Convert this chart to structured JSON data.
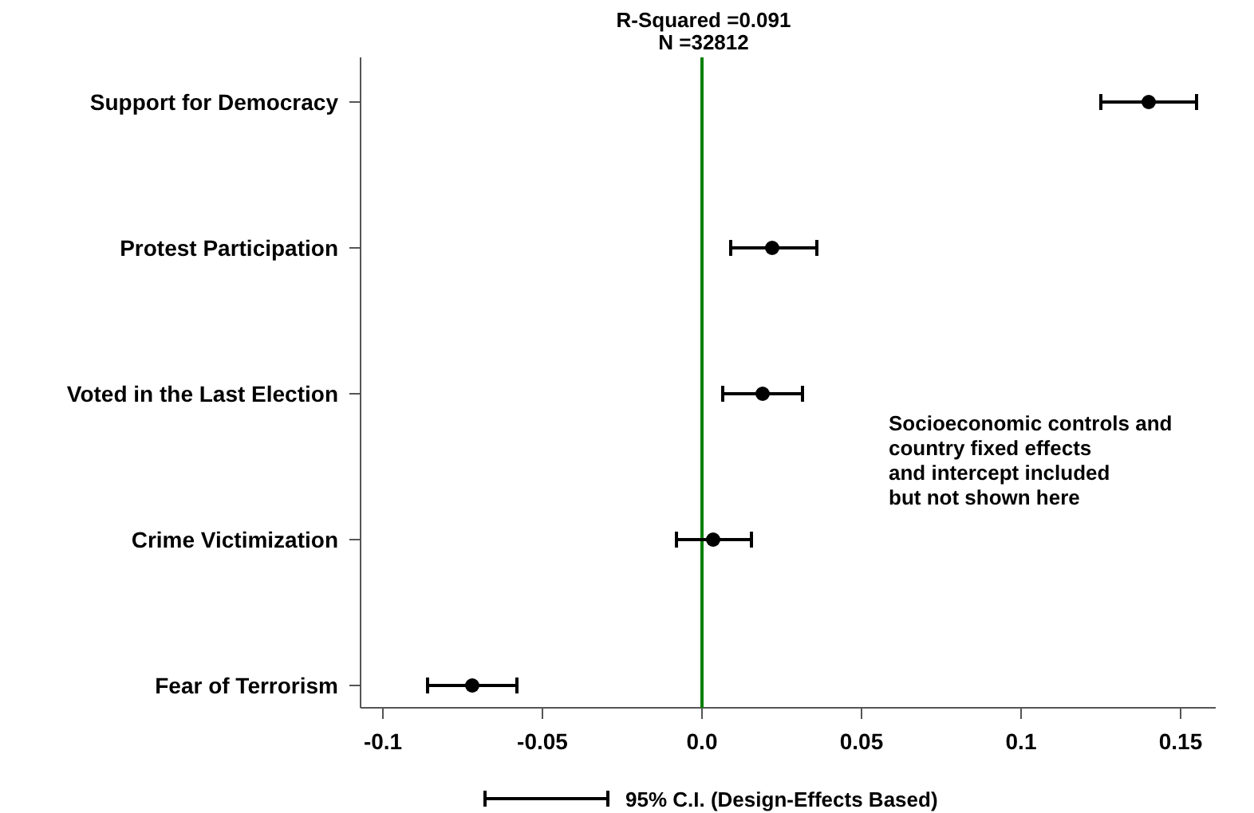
{
  "chart_data": {
    "type": "scatter",
    "orientation": "horizontal",
    "title": "R-Squared =0.091",
    "subtitle": "N =32812",
    "categories": [
      "Support for Democracy",
      "Protest Participation",
      "Voted in the Last Election",
      "Crime Victimization",
      "Fear of Terrorism"
    ],
    "series": [
      {
        "name": "95% C.I. (Design-Effects Based)",
        "color": "#000000",
        "values": [
          0.14,
          0.022,
          0.019,
          0.0035,
          -0.072
        ],
        "errors": [
          [
            0.125,
            0.155
          ],
          [
            0.009,
            0.036
          ],
          [
            0.0065,
            0.0315
          ],
          [
            -0.008,
            0.0155
          ],
          [
            -0.086,
            -0.058
          ]
        ]
      }
    ],
    "xlim": [
      -0.107,
      0.161
    ],
    "xticks": [
      -0.1,
      -0.05,
      {
        "value": 0,
        "label": "0.0"
      },
      0.05,
      0.1,
      0.15
    ],
    "ref_lines": [
      {
        "axis": "x",
        "value": 0,
        "color": "#008000"
      }
    ],
    "annotations": [
      "Socioeconomic controls and\ncountry fixed effects\nand intercept included\nbut not shown here"
    ],
    "marker": "circle",
    "legend": "bottom",
    "grid": false
  }
}
